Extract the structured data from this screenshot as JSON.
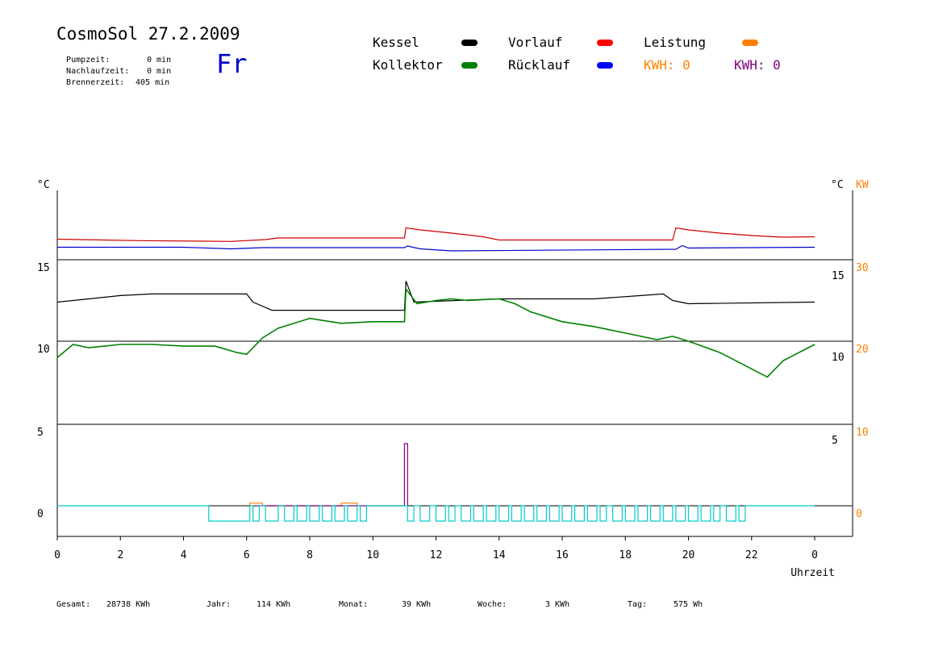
{
  "header": {
    "title": "CosmoSol 27.2.2009",
    "day": "Fr",
    "info": [
      {
        "label": "Pumpzeit:",
        "value": "0 min"
      },
      {
        "label": "Nachlaufzeit:",
        "value": "0 min"
      },
      {
        "label": "Brennerzeit:",
        "value": "405 min"
      }
    ]
  },
  "legend": {
    "kessel": {
      "label": "Kessel",
      "color": "#000000"
    },
    "kollektor": {
      "label": "Kollektor",
      "color": "#008000"
    },
    "vorlauf": {
      "label": "Vorlauf",
      "color": "#ff0000"
    },
    "ruecklauf": {
      "label": "Rücklauf",
      "color": "#0000ff"
    },
    "leistung": {
      "label": "Leistung",
      "color": "#ff8000"
    },
    "kwh_orange": {
      "label": "KWH: 0",
      "color": "#ff8000"
    },
    "kwh_purple": {
      "label": "KWH: 0",
      "color": "#800080"
    }
  },
  "footer": {
    "gesamt_label": "Gesamt:",
    "gesamt_value": "28738 KWh",
    "jahr_label": "Jahr:",
    "jahr_value": "114 KWh",
    "monat_label": "Monat:",
    "monat_value": "39 KWh",
    "woche_label": "Woche:",
    "woche_value": "3 KWh",
    "tag_label": "Tag:",
    "tag_value": "575 Wh"
  },
  "chart_data": {
    "type": "line",
    "xlabel": "Uhrzeit",
    "x_ticks": [
      "0",
      "2",
      "4",
      "6",
      "8",
      "10",
      "12",
      "14",
      "16",
      "18",
      "20",
      "22",
      "0"
    ],
    "x_range": [
      0,
      24
    ],
    "left_unit": "°C",
    "right_unit": "°C",
    "right_unit2": "KW",
    "left_ticks": [
      "15",
      "10",
      "5",
      "0"
    ],
    "right_ticks_c": [
      "15",
      "10",
      "5"
    ],
    "right_ticks_kw": [
      "30",
      "20",
      "10",
      "0"
    ],
    "grid": true,
    "series": [
      {
        "name": "Vorlauf",
        "color": "#cc0000",
        "points": [
          [
            0,
            0.7
          ],
          [
            2.6,
            0.35
          ],
          [
            5.5,
            0.15
          ],
          [
            6.6,
            0.6
          ],
          [
            7,
            1.0
          ],
          [
            11,
            1.0
          ],
          [
            11.05,
            3.5
          ],
          [
            11.5,
            3.0
          ],
          [
            12.5,
            2.2
          ],
          [
            13.5,
            1.3
          ],
          [
            14,
            0.5
          ],
          [
            19.5,
            0.5
          ],
          [
            19.6,
            3.5
          ],
          [
            20,
            3.0
          ],
          [
            21,
            2.2
          ],
          [
            22,
            1.6
          ],
          [
            23,
            1.2
          ],
          [
            24,
            1.3
          ]
        ]
      },
      {
        "name": "Rücklauf",
        "color": "#0000cc",
        "points": [
          [
            0,
            -1.3
          ],
          [
            4,
            -1.3
          ],
          [
            5.5,
            -1.7
          ],
          [
            6.5,
            -1.4
          ],
          [
            11,
            -1.4
          ],
          [
            11.1,
            -1.0
          ],
          [
            11.5,
            -1.7
          ],
          [
            12.5,
            -2.2
          ],
          [
            19.6,
            -1.8
          ],
          [
            19.8,
            -0.9
          ],
          [
            20,
            -1.5
          ],
          [
            24,
            -1.3
          ]
        ]
      },
      {
        "name": "Kessel",
        "color": "#000000",
        "points": [
          [
            0,
            12.4
          ],
          [
            1,
            12.6
          ],
          [
            2,
            12.8
          ],
          [
            3,
            12.9
          ],
          [
            6,
            12.9
          ],
          [
            6.2,
            12.4
          ],
          [
            6.8,
            11.9
          ],
          [
            11,
            11.9
          ],
          [
            11.05,
            13.7
          ],
          [
            11.3,
            12.4
          ],
          [
            14,
            12.6
          ],
          [
            17,
            12.6
          ],
          [
            18.5,
            12.8
          ],
          [
            19.2,
            12.9
          ],
          [
            19.5,
            12.5
          ],
          [
            20,
            12.3
          ],
          [
            24,
            12.4
          ]
        ]
      },
      {
        "name": "Kollektor",
        "color": "#008000",
        "points": [
          [
            0,
            9.0
          ],
          [
            0.5,
            9.8
          ],
          [
            1,
            9.6
          ],
          [
            2,
            9.8
          ],
          [
            3,
            9.8
          ],
          [
            4,
            9.7
          ],
          [
            5,
            9.7
          ],
          [
            5.7,
            9.3
          ],
          [
            6,
            9.2
          ],
          [
            6.5,
            10.2
          ],
          [
            7,
            10.8
          ],
          [
            8,
            11.4
          ],
          [
            9,
            11.1
          ],
          [
            10,
            11.2
          ],
          [
            11,
            11.2
          ],
          [
            11.05,
            13.2
          ],
          [
            11.4,
            12.3
          ],
          [
            12,
            12.5
          ],
          [
            12.5,
            12.6
          ],
          [
            13,
            12.5
          ],
          [
            14,
            12.6
          ],
          [
            14.5,
            12.3
          ],
          [
            15,
            11.8
          ],
          [
            16,
            11.2
          ],
          [
            17,
            10.9
          ],
          [
            18,
            10.5
          ],
          [
            19,
            10.1
          ],
          [
            19.5,
            10.3
          ],
          [
            20,
            10.0
          ],
          [
            21,
            9.3
          ],
          [
            22,
            8.3
          ],
          [
            22.5,
            7.8
          ],
          [
            23,
            8.8
          ],
          [
            23.5,
            9.3
          ],
          [
            24,
            9.8
          ]
        ]
      },
      {
        "name": "Leistung",
        "color": "#ff8000",
        "points": [
          [
            6.1,
            0
          ],
          [
            6.1,
            0.2
          ],
          [
            6.5,
            0.2
          ],
          [
            6.5,
            0
          ],
          [
            9.0,
            0
          ],
          [
            9.0,
            0.2
          ],
          [
            9.5,
            0.2
          ],
          [
            9.5,
            0
          ]
        ]
      },
      {
        "name": "KWH",
        "color": "#800080",
        "points": [
          [
            6.3,
            0
          ],
          [
            11.0,
            0
          ],
          [
            11.0,
            4.6
          ],
          [
            11.1,
            4.6
          ],
          [
            11.1,
            0
          ]
        ]
      },
      {
        "name": "Pumpe",
        "color": "#00cccc",
        "pulses_low": [
          [
            4.8,
            6.1
          ],
          [
            6.2,
            6.4
          ],
          [
            6.6,
            7.0
          ],
          [
            7.2,
            7.5
          ],
          [
            7.6,
            7.9
          ],
          [
            8.0,
            8.3
          ],
          [
            8.4,
            8.7
          ],
          [
            8.8,
            9.1
          ],
          [
            9.2,
            9.5
          ],
          [
            9.6,
            9.8
          ],
          [
            11.1,
            11.3
          ],
          [
            11.5,
            11.8
          ],
          [
            12.0,
            12.3
          ],
          [
            12.4,
            12.6
          ],
          [
            12.8,
            13.1
          ],
          [
            13.2,
            13.5
          ],
          [
            13.6,
            13.9
          ],
          [
            14.0,
            14.3
          ],
          [
            14.4,
            14.7
          ],
          [
            14.8,
            15.1
          ],
          [
            15.2,
            15.5
          ],
          [
            15.6,
            15.9
          ],
          [
            16.0,
            16.3
          ],
          [
            16.4,
            16.7
          ],
          [
            16.8,
            17.1
          ],
          [
            17.2,
            17.4
          ],
          [
            17.6,
            17.9
          ],
          [
            18.0,
            18.3
          ],
          [
            18.4,
            18.7
          ],
          [
            18.8,
            19.1
          ],
          [
            19.2,
            19.5
          ],
          [
            19.6,
            19.9
          ],
          [
            20.0,
            20.3
          ],
          [
            20.4,
            20.7
          ],
          [
            20.8,
            21.0
          ],
          [
            21.2,
            21.5
          ],
          [
            21.6,
            21.8
          ]
        ]
      }
    ]
  }
}
